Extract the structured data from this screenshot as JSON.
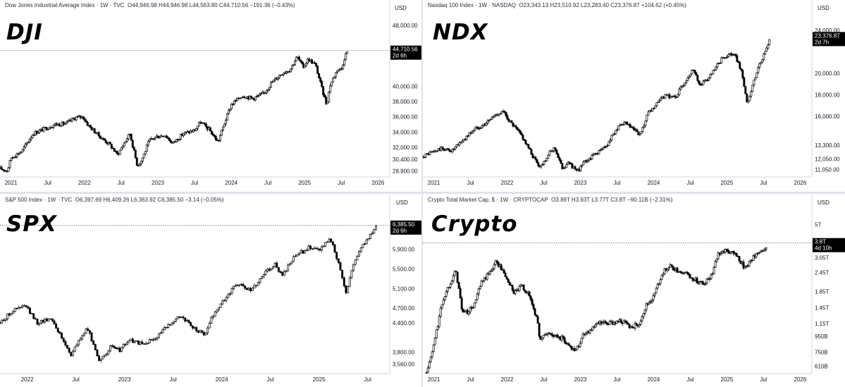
{
  "chart_data": [
    {
      "id": "dji",
      "type": "candlestick",
      "label": "DJI",
      "title": "Dow Jones Industrial Average Index · 1W · TVC",
      "ohlc_text": "O44,946.98 H44,946.98 L44,563.80 C44,710.56 −191.36 (−0.43%)",
      "currency": "USD",
      "yticks": [
        "48,000.00",
        "40,000.00",
        "38,000.00",
        "36,000.00",
        "34,000.00",
        "32,000.00",
        "30,400.00",
        "28,900.00"
      ],
      "ytick_values": [
        48000,
        40000,
        38000,
        36000,
        34000,
        32000,
        30400,
        28900
      ],
      "ylim": [
        28000,
        49500
      ],
      "xticks": [
        "2021",
        "Jul",
        "2022",
        "Jul",
        "2023",
        "Jul",
        "2024",
        "Jul",
        "2025",
        "Jul",
        "2026"
      ],
      "x_range": [
        2020.85,
        2026.15
      ],
      "last_price": "44,710.56",
      "last_value": 44710.56,
      "countdown": "2d 6h",
      "anchors": [
        [
          2020.85,
          29200
        ],
        [
          2020.95,
          28900
        ],
        [
          2021.0,
          30600
        ],
        [
          2021.15,
          31500
        ],
        [
          2021.3,
          33800
        ],
        [
          2021.45,
          34400
        ],
        [
          2021.6,
          35000
        ],
        [
          2021.75,
          35100
        ],
        [
          2021.88,
          35900
        ],
        [
          2021.98,
          36000
        ],
        [
          2022.05,
          34900
        ],
        [
          2022.2,
          33500
        ],
        [
          2022.35,
          32300
        ],
        [
          2022.45,
          31000
        ],
        [
          2022.55,
          32700
        ],
        [
          2022.62,
          33800
        ],
        [
          2022.72,
          29600
        ],
        [
          2022.78,
          30300
        ],
        [
          2022.88,
          32800
        ],
        [
          2022.98,
          33400
        ],
        [
          2023.1,
          33600
        ],
        [
          2023.2,
          32500
        ],
        [
          2023.35,
          33800
        ],
        [
          2023.5,
          34200
        ],
        [
          2023.58,
          35300
        ],
        [
          2023.7,
          34300
        ],
        [
          2023.82,
          32700
        ],
        [
          2023.92,
          35500
        ],
        [
          2024.0,
          37600
        ],
        [
          2024.15,
          38800
        ],
        [
          2024.3,
          38400
        ],
        [
          2024.45,
          39100
        ],
        [
          2024.55,
          40500
        ],
        [
          2024.7,
          41800
        ],
        [
          2024.8,
          42200
        ],
        [
          2024.9,
          43900
        ],
        [
          2024.98,
          42500
        ],
        [
          2025.05,
          43600
        ],
        [
          2025.15,
          42800
        ],
        [
          2025.25,
          39200
        ],
        [
          2025.3,
          37600
        ],
        [
          2025.35,
          40200
        ],
        [
          2025.45,
          42300
        ],
        [
          2025.5,
          42200
        ],
        [
          2025.55,
          44000
        ],
        [
          2025.59,
          44710
        ]
      ],
      "dotted_level": 44710
    },
    {
      "id": "ndx",
      "type": "candlestick",
      "label": "NDX",
      "title": "Nasdaq 100 Index · 1W · NASDAQ",
      "ohlc_text": "O23,343.13 H23,510.92 L23,283.40 C23,376.87 +104.62 (+0.45%)",
      "currency": "USD",
      "yticks": [
        "24,000.00",
        "20,000.00",
        "18,000.00",
        "16,000.00",
        "13,300.00",
        "12,050.00",
        "11,050.00"
      ],
      "ytick_values": [
        24000,
        20000,
        18000,
        16000,
        13300,
        12050,
        11050
      ],
      "ylim": [
        10300,
        25500
      ],
      "xticks": [
        "2021",
        "Jul",
        "2022",
        "Jul",
        "2023",
        "Jul",
        "2024",
        "Jul",
        "2025",
        "Jul",
        "2026"
      ],
      "x_range": [
        2020.85,
        2026.15
      ],
      "last_price": "23,376.87",
      "last_value": 23376.87,
      "countdown": "2d 7h",
      "anchors": [
        [
          2020.85,
          12300
        ],
        [
          2020.95,
          12600
        ],
        [
          2021.1,
          13000
        ],
        [
          2021.25,
          12800
        ],
        [
          2021.4,
          13800
        ],
        [
          2021.55,
          14800
        ],
        [
          2021.7,
          15300
        ],
        [
          2021.85,
          16200
        ],
        [
          2021.95,
          16400
        ],
        [
          2022.05,
          15400
        ],
        [
          2022.2,
          14200
        ],
        [
          2022.35,
          12300
        ],
        [
          2022.45,
          11300
        ],
        [
          2022.58,
          12600
        ],
        [
          2022.65,
          13100
        ],
        [
          2022.75,
          11200
        ],
        [
          2022.85,
          11700
        ],
        [
          2022.95,
          10800
        ],
        [
          2023.05,
          11700
        ],
        [
          2023.2,
          12500
        ],
        [
          2023.35,
          13200
        ],
        [
          2023.48,
          14700
        ],
        [
          2023.6,
          15400
        ],
        [
          2023.7,
          14900
        ],
        [
          2023.82,
          14200
        ],
        [
          2023.92,
          16200
        ],
        [
          2024.0,
          16800
        ],
        [
          2024.15,
          17900
        ],
        [
          2024.3,
          17800
        ],
        [
          2024.45,
          19500
        ],
        [
          2024.55,
          20500
        ],
        [
          2024.62,
          18900
        ],
        [
          2024.75,
          19500
        ],
        [
          2024.85,
          20500
        ],
        [
          2024.95,
          21500
        ],
        [
          2025.1,
          21800
        ],
        [
          2025.2,
          20200
        ],
        [
          2025.28,
          17000
        ],
        [
          2025.35,
          18800
        ],
        [
          2025.45,
          21000
        ],
        [
          2025.52,
          21800
        ],
        [
          2025.59,
          23376
        ]
      ],
      "dotted_level": null
    },
    {
      "id": "spx",
      "type": "candlestick",
      "label": "SPX",
      "title": "S&P 500 Index · 1W · TVC",
      "ohlc_text": "O6,397.69 H6,409.26 L6,363.92 C6,385.50 −3.14 (−0.05%)",
      "currency": "USD",
      "yticks": [
        "5,900.00",
        "5,500.00",
        "5,100.00",
        "4,700.00",
        "4,400.00",
        "3,800.00",
        "3,560.00"
      ],
      "ytick_values": [
        5900,
        5500,
        5100,
        4700,
        4400,
        3800,
        3560
      ],
      "ylim": [
        3350,
        6700
      ],
      "xticks": [
        "2022",
        "Jul",
        "2023",
        "Jul",
        "2024",
        "Jul",
        "2025",
        "Jul"
      ],
      "x_range": [
        2021.72,
        2025.72
      ],
      "last_price": "6,385.50",
      "last_value": 6385.5,
      "countdown": "2d 6h",
      "anchors": [
        [
          2021.72,
          4400
        ],
        [
          2021.85,
          4650
        ],
        [
          2021.98,
          4750
        ],
        [
          2022.1,
          4400
        ],
        [
          2022.25,
          4500
        ],
        [
          2022.35,
          4100
        ],
        [
          2022.45,
          3750
        ],
        [
          2022.55,
          4100
        ],
        [
          2022.62,
          4280
        ],
        [
          2022.75,
          3600
        ],
        [
          2022.85,
          3900
        ],
        [
          2022.95,
          3850
        ],
        [
          2023.05,
          4050
        ],
        [
          2023.2,
          3950
        ],
        [
          2023.35,
          4150
        ],
        [
          2023.5,
          4450
        ],
        [
          2023.58,
          4550
        ],
        [
          2023.7,
          4300
        ],
        [
          2023.82,
          4150
        ],
        [
          2023.92,
          4600
        ],
        [
          2024.0,
          4800
        ],
        [
          2024.15,
          5200
        ],
        [
          2024.3,
          5050
        ],
        [
          2024.45,
          5450
        ],
        [
          2024.55,
          5600
        ],
        [
          2024.62,
          5350
        ],
        [
          2024.75,
          5750
        ],
        [
          2024.9,
          5950
        ],
        [
          2025.0,
          5900
        ],
        [
          2025.12,
          6100
        ],
        [
          2025.22,
          5500
        ],
        [
          2025.28,
          5000
        ],
        [
          2025.35,
          5600
        ],
        [
          2025.45,
          6000
        ],
        [
          2025.55,
          6250
        ],
        [
          2025.6,
          6385
        ]
      ],
      "dotted_level": 6385
    },
    {
      "id": "crypto",
      "type": "candlestick",
      "label": "Crypto",
      "title": "Crypto Total Market Cap, $ · 1W · CRYPTOCAP",
      "ohlc_text": "O3.89T H3.93T L3.77T C3.8T −90.11B (−2.31%)",
      "currency": "USD",
      "yticks": [
        "5T",
        "3.05T",
        "2.45T",
        "1.85T",
        "1.45T",
        "1.15T",
        "950B",
        "750B",
        "610B"
      ],
      "ytick_values": [
        5,
        3.05,
        2.45,
        1.85,
        1.45,
        1.15,
        0.95,
        0.75,
        0.61
      ],
      "ylim": [
        0.54,
        6.2
      ],
      "log_scale": true,
      "xticks": [
        "2021",
        "Jul",
        "2022",
        "Jul",
        "2023",
        "Jul",
        "2024",
        "Jul",
        "2025",
        "Jul",
        "2026"
      ],
      "x_range": [
        2020.85,
        2026.15
      ],
      "last_price": "3.8T",
      "last_value": 3.8,
      "countdown": "4d 10h",
      "anchors": [
        [
          2020.9,
          0.55
        ],
        [
          2020.98,
          0.75
        ],
        [
          2021.05,
          1.1
        ],
        [
          2021.12,
          1.6
        ],
        [
          2021.2,
          2.0
        ],
        [
          2021.3,
          2.5
        ],
        [
          2021.38,
          1.4
        ],
        [
          2021.45,
          1.35
        ],
        [
          2021.55,
          1.5
        ],
        [
          2021.65,
          2.1
        ],
        [
          2021.75,
          2.4
        ],
        [
          2021.85,
          2.9
        ],
        [
          2021.92,
          2.6
        ],
        [
          2022.0,
          2.2
        ],
        [
          2022.1,
          1.8
        ],
        [
          2022.2,
          2.0
        ],
        [
          2022.3,
          1.75
        ],
        [
          2022.4,
          1.25
        ],
        [
          2022.45,
          0.9
        ],
        [
          2022.55,
          1.0
        ],
        [
          2022.65,
          0.95
        ],
        [
          2022.75,
          0.92
        ],
        [
          2022.85,
          0.82
        ],
        [
          2022.95,
          0.78
        ],
        [
          2023.05,
          1.0
        ],
        [
          2023.15,
          1.05
        ],
        [
          2023.25,
          1.15
        ],
        [
          2023.4,
          1.15
        ],
        [
          2023.55,
          1.2
        ],
        [
          2023.7,
          1.08
        ],
        [
          2023.8,
          1.15
        ],
        [
          2023.9,
          1.5
        ],
        [
          2024.0,
          1.7
        ],
        [
          2024.12,
          2.4
        ],
        [
          2024.2,
          2.7
        ],
        [
          2024.35,
          2.5
        ],
        [
          2024.45,
          2.4
        ],
        [
          2024.55,
          2.2
        ],
        [
          2024.7,
          2.1
        ],
        [
          2024.8,
          2.4
        ],
        [
          2024.88,
          3.3
        ],
        [
          2024.98,
          3.4
        ],
        [
          2025.08,
          3.3
        ],
        [
          2025.18,
          2.9
        ],
        [
          2025.25,
          2.6
        ],
        [
          2025.33,
          3.0
        ],
        [
          2025.42,
          3.2
        ],
        [
          2025.5,
          3.3
        ],
        [
          2025.55,
          3.8
        ]
      ],
      "dotted_level": 3.8
    }
  ]
}
